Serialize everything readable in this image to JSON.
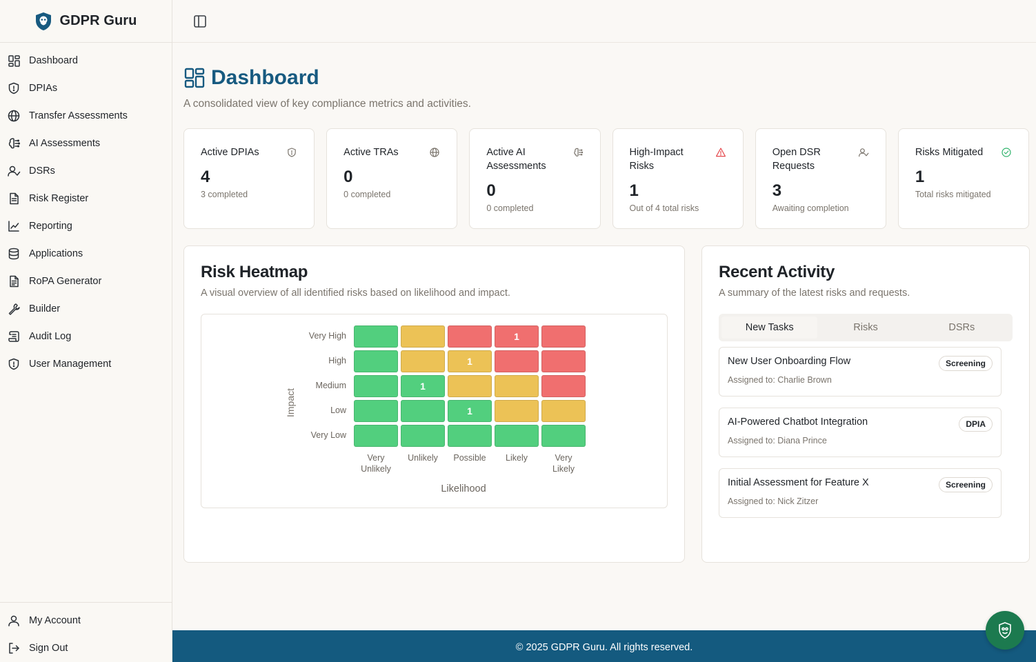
{
  "app": {
    "name": "GDPR Guru"
  },
  "sidebar": {
    "items": [
      {
        "label": "Dashboard",
        "icon": "dashboard-icon"
      },
      {
        "label": "DPIAs",
        "icon": "shield-icon"
      },
      {
        "label": "Transfer Assessments",
        "icon": "globe-icon"
      },
      {
        "label": "AI Assessments",
        "icon": "brain-icon"
      },
      {
        "label": "DSRs",
        "icon": "user-check-icon"
      },
      {
        "label": "Risk Register",
        "icon": "document-icon"
      },
      {
        "label": "Reporting",
        "icon": "line-chart-icon"
      },
      {
        "label": "Applications",
        "icon": "database-icon"
      },
      {
        "label": "RoPA Generator",
        "icon": "file-text-icon"
      },
      {
        "label": "Builder",
        "icon": "wrench-icon"
      },
      {
        "label": "Audit Log",
        "icon": "scroll-icon"
      },
      {
        "label": "User Management",
        "icon": "shield-icon"
      }
    ],
    "bottom": [
      {
        "label": "My Account",
        "icon": "user-icon"
      },
      {
        "label": "Sign Out",
        "icon": "sign-out-icon"
      }
    ]
  },
  "page": {
    "title": "Dashboard",
    "subtitle": "A consolidated view of key compliance metrics and activities."
  },
  "stats": [
    {
      "label": "Active DPIAs",
      "value": "4",
      "note": "3 completed",
      "icon": "shield-icon"
    },
    {
      "label": "Active TRAs",
      "value": "0",
      "note": "0 completed",
      "icon": "globe-icon"
    },
    {
      "label": "Active AI Assessments",
      "value": "0",
      "note": "0 completed",
      "icon": "brain-icon"
    },
    {
      "label": "High-Impact Risks",
      "value": "1",
      "note": "Out of 4 total risks",
      "icon": "alert-triangle-icon"
    },
    {
      "label": "Open DSR Requests",
      "value": "3",
      "note": "Awaiting completion",
      "icon": "user-check-icon"
    },
    {
      "label": "Risks Mitigated",
      "value": "1",
      "note": "Total risks mitigated",
      "icon": "check-circle-icon"
    }
  ],
  "heatmap": {
    "title": "Risk Heatmap",
    "subtitle": "A visual overview of all identified risks based on likelihood and impact.",
    "y_title": "Impact",
    "x_title": "Likelihood",
    "rows": [
      "Very High",
      "High",
      "Medium",
      "Low",
      "Very Low"
    ],
    "cols": [
      [
        "Very",
        "Unlikely"
      ],
      [
        "Unlikely"
      ],
      [
        "Possible"
      ],
      [
        "Likely"
      ],
      [
        "Very",
        "Likely"
      ]
    ],
    "colors": {
      "green": "#52cf7e",
      "amber": "#ecc256",
      "red": "#f06f6f"
    },
    "levels": [
      [
        "green",
        "amber",
        "red",
        "red",
        "red"
      ],
      [
        "green",
        "amber",
        "amber",
        "red",
        "red"
      ],
      [
        "green",
        "green",
        "amber",
        "amber",
        "red"
      ],
      [
        "green",
        "green",
        "green",
        "amber",
        "amber"
      ],
      [
        "green",
        "green",
        "green",
        "green",
        "green"
      ]
    ],
    "counts": [
      [
        "",
        "",
        "",
        "1",
        ""
      ],
      [
        "",
        "",
        "1",
        "",
        ""
      ],
      [
        "",
        "1",
        "",
        "",
        ""
      ],
      [
        "",
        "",
        "1",
        "",
        ""
      ],
      [
        "",
        "",
        "",
        "",
        ""
      ]
    ]
  },
  "activity": {
    "title": "Recent Activity",
    "subtitle": "A summary of the latest risks and requests.",
    "tabs": [
      "New Tasks",
      "Risks",
      "DSRs"
    ],
    "active_tab": 0,
    "tasks": [
      {
        "title": "New User Onboarding Flow",
        "assigned": "Assigned to: Charlie Brown",
        "badge": "Screening"
      },
      {
        "title": "AI-Powered Chatbot Integration",
        "assigned": "Assigned to: Diana Prince",
        "badge": "DPIA"
      },
      {
        "title": "Initial Assessment for Feature X",
        "assigned": "Assigned to: Nick Zitzer",
        "badge": "Screening"
      }
    ]
  },
  "footer": {
    "text": "© 2025 GDPR Guru. All rights reserved."
  },
  "theme": {
    "brand": "#175a80",
    "footer": "#145a7f",
    "fab": "#1c7a4f"
  }
}
